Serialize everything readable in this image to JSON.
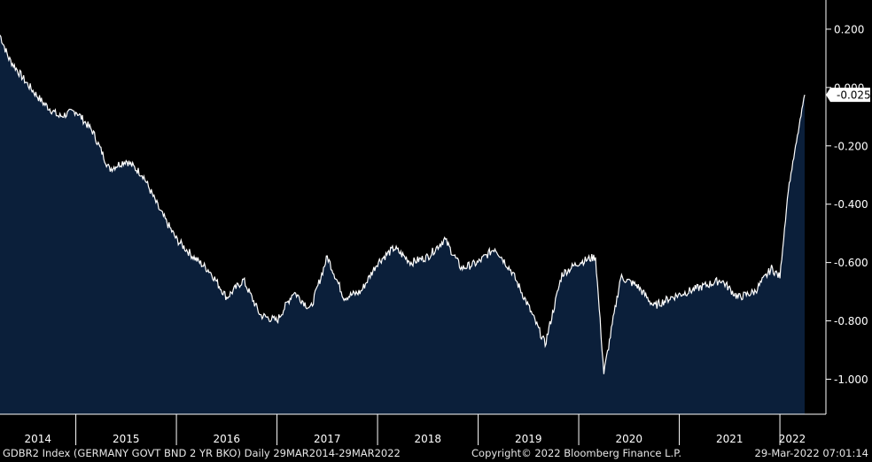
{
  "chart_data": {
    "type": "area",
    "title": "",
    "xlabel": "",
    "ylabel": "",
    "ylim": [
      -1.12,
      0.3
    ],
    "x_ticks": [
      "2014",
      "2015",
      "2016",
      "2017",
      "2018",
      "2019",
      "2020",
      "2021",
      "2022"
    ],
    "y_ticks": [
      {
        "value": 0.2,
        "label": "0.200"
      },
      {
        "value": 0.0,
        "label": "0.000"
      },
      {
        "value": -0.2,
        "label": "-0.200"
      },
      {
        "value": -0.4,
        "label": "-0.400"
      },
      {
        "value": -0.6,
        "label": "-0.600"
      },
      {
        "value": -0.8,
        "label": "-0.800"
      },
      {
        "value": -1.0,
        "label": "-1.000"
      }
    ],
    "last_value_label": "-0.025",
    "series": [
      {
        "x": [
          "2014-03",
          "2014-05",
          "2014-07",
          "2014-09",
          "2014-11",
          "2015-01",
          "2015-03",
          "2015-05",
          "2015-07",
          "2015-09",
          "2015-11",
          "2016-01",
          "2016-03",
          "2016-05",
          "2016-07",
          "2016-09",
          "2016-11",
          "2017-01",
          "2017-03",
          "2017-05",
          "2017-07",
          "2017-09",
          "2017-11",
          "2018-01",
          "2018-03",
          "2018-05",
          "2018-07",
          "2018-09",
          "2018-11",
          "2019-01",
          "2019-03",
          "2019-05",
          "2019-07",
          "2019-09",
          "2019-11",
          "2020-01",
          "2020-03",
          "2020-04",
          "2020-06",
          "2020-08",
          "2020-10",
          "2020-12",
          "2021-02",
          "2021-04",
          "2021-06",
          "2021-08",
          "2021-10",
          "2021-12",
          "2022-01",
          "2022-02",
          "2022-03"
        ],
        "values": [
          0.18,
          0.1,
          0.02,
          -0.05,
          -0.1,
          -0.08,
          -0.15,
          -0.28,
          -0.25,
          -0.3,
          -0.42,
          -0.52,
          -0.58,
          -0.63,
          -0.72,
          -0.66,
          -0.78,
          -0.8,
          -0.7,
          -0.76,
          -0.58,
          -0.72,
          -0.7,
          -0.6,
          -0.55,
          -0.6,
          -0.58,
          -0.52,
          -0.62,
          -0.6,
          -0.55,
          -0.63,
          -0.75,
          -0.88,
          -0.64,
          -0.6,
          -0.58,
          -0.98,
          -0.65,
          -0.68,
          -0.75,
          -0.72,
          -0.7,
          -0.68,
          -0.66,
          -0.72,
          -0.7,
          -0.62,
          -0.65,
          -0.35,
          -0.025
        ]
      }
    ],
    "colors": {
      "background": "#000000",
      "area_fill": "#0b1f3a",
      "line": "#ffffff",
      "axis": "#ffffff"
    }
  },
  "footer": {
    "left": "GDBR2 Index (GERMANY GOVT BND 2 YR BKO)  Daily 29MAR2014-29MAR2022",
    "center": "Copyright© 2022 Bloomberg Finance L.P.",
    "right": "29-Mar-2022 07:01:14"
  }
}
